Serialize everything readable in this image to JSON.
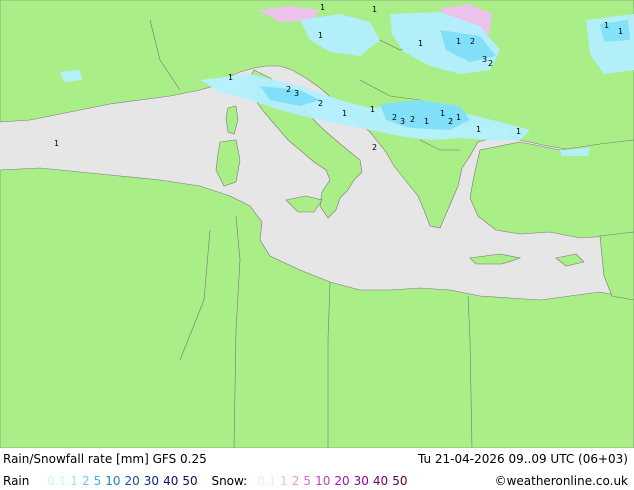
{
  "header": {
    "title": "Rain/Snowfall rate [mm] GFS 0.25",
    "datetime": "Tu 21-04-2026 09..09 UTC (06+03)"
  },
  "legend": {
    "rain_label": "Rain",
    "rain_levels": [
      {
        "label": "0.1",
        "color": "#c8f5ff"
      },
      {
        "label": "1",
        "color": "#96e6fa"
      },
      {
        "label": "2",
        "color": "#5fd2f5"
      },
      {
        "label": "5",
        "color": "#32b4eb"
      },
      {
        "label": "10",
        "color": "#1e82d2"
      },
      {
        "label": "20",
        "color": "#1450aa"
      },
      {
        "label": "30",
        "color": "#0a2882"
      },
      {
        "label": "40",
        "color": "#140a6e"
      },
      {
        "label": "50",
        "color": "#28005a"
      }
    ],
    "snow_label": "Snow:",
    "snow_levels": [
      {
        "label": "0.1",
        "color": "#f8e6f8"
      },
      {
        "label": "1",
        "color": "#f0bef0"
      },
      {
        "label": "2",
        "color": "#e696e6"
      },
      {
        "label": "5",
        "color": "#dc6edc"
      },
      {
        "label": "10",
        "color": "#c83cc8"
      },
      {
        "label": "20",
        "color": "#aa14aa"
      },
      {
        "label": "30",
        "color": "#8c008c"
      },
      {
        "label": "40",
        "color": "#6e006e"
      },
      {
        "label": "50",
        "color": "#500050"
      }
    ],
    "credit": "©weatheronline.co.uk"
  },
  "colors": {
    "land": "#aaee88",
    "sea": "#e6e6e6",
    "border": "#777777",
    "rain_light": "#b4f0ff",
    "rain_medium": "#7fe0f8",
    "snow_light": "#f0c0f0"
  },
  "map_labels": [
    "1",
    "1",
    "1",
    "1",
    "2",
    "3",
    "2",
    "1",
    "1",
    "2",
    "3",
    "2",
    "1",
    "1",
    "2",
    "1",
    "1",
    "1",
    "2",
    "1",
    "3",
    "2",
    "1",
    "1",
    "1",
    "1",
    "2"
  ]
}
